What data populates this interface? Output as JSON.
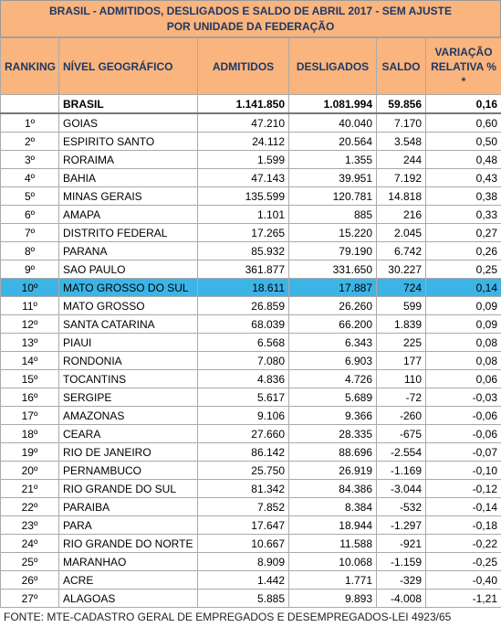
{
  "title": "BRASIL - ADMITIDOS, DESLIGADOS E SALDO DE ABRIL 2017 - SEM AJUSTE        POR UNIDADE DA FEDERAÇÃO",
  "table": {
    "header": [
      "RANKING",
      "NÍVEL GEOGRÁFICO",
      "ADMITIDOS",
      "DESLIGADOS",
      "SALDO",
      "VARIAÇÃO RELATIVA % *"
    ],
    "total": [
      "",
      "BRASIL",
      "1.141.850",
      "1.081.994",
      "59.856",
      "0,16"
    ],
    "rows": [
      [
        "1º",
        "GOIAS",
        "47.210",
        "40.040",
        "7.170",
        "0,60"
      ],
      [
        "2º",
        "ESPIRITO SANTO",
        "24.112",
        "20.564",
        "3.548",
        "0,50"
      ],
      [
        "3º",
        "RORAIMA",
        "1.599",
        "1.355",
        "244",
        "0,48"
      ],
      [
        "4º",
        "BAHIA",
        "47.143",
        "39.951",
        "7.192",
        "0,43"
      ],
      [
        "5º",
        "MINAS GERAIS",
        "135.599",
        "120.781",
        "14.818",
        "0,38"
      ],
      [
        "6º",
        "AMAPA",
        "1.101",
        "885",
        "216",
        "0,33"
      ],
      [
        "7º",
        "DISTRITO FEDERAL",
        "17.265",
        "15.220",
        "2.045",
        "0,27"
      ],
      [
        "8º",
        "PARANA",
        "85.932",
        "79.190",
        "6.742",
        "0,26"
      ],
      [
        "9º",
        "SAO PAULO",
        "361.877",
        "331.650",
        "30.227",
        "0,25"
      ],
      [
        "10º",
        "MATO GROSSO DO SUL",
        "18.611",
        "17.887",
        "724",
        "0,14"
      ],
      [
        "11º",
        "MATO GROSSO",
        "26.859",
        "26.260",
        "599",
        "0,09"
      ],
      [
        "12º",
        "SANTA CATARINA",
        "68.039",
        "66.200",
        "1.839",
        "0,09"
      ],
      [
        "13º",
        "PIAUI",
        "6.568",
        "6.343",
        "225",
        "0,08"
      ],
      [
        "14º",
        "RONDONIA",
        "7.080",
        "6.903",
        "177",
        "0,08"
      ],
      [
        "15º",
        "TOCANTINS",
        "4.836",
        "4.726",
        "110",
        "0,06"
      ],
      [
        "16º",
        "SERGIPE",
        "5.617",
        "5.689",
        "-72",
        "-0,03"
      ],
      [
        "17º",
        "AMAZONAS",
        "9.106",
        "9.366",
        "-260",
        "-0,06"
      ],
      [
        "18º",
        "CEARA",
        "27.660",
        "28.335",
        "-675",
        "-0,06"
      ],
      [
        "19º",
        "RIO DE JANEIRO",
        "86.142",
        "88.696",
        "-2.554",
        "-0,07"
      ],
      [
        "20º",
        "PERNAMBUCO",
        "25.750",
        "26.919",
        "-1.169",
        "-0,10"
      ],
      [
        "21º",
        "RIO GRANDE DO SUL",
        "81.342",
        "84.386",
        "-3.044",
        "-0,12"
      ],
      [
        "22º",
        "PARAIBA",
        "7.852",
        "8.384",
        "-532",
        "-0,14"
      ],
      [
        "23º",
        "PARA",
        "17.647",
        "18.944",
        "-1.297",
        "-0,18"
      ],
      [
        "24º",
        "RIO GRANDE DO NORTE",
        "10.667",
        "11.588",
        "-921",
        "-0,22"
      ],
      [
        "25º",
        "MARANHAO",
        "8.909",
        "10.068",
        "-1.159",
        "-0,25"
      ],
      [
        "26º",
        "ACRE",
        "1.442",
        "1.771",
        "-329",
        "-0,40"
      ],
      [
        "27º",
        "ALAGOAS",
        "5.885",
        "9.893",
        "-4.008",
        "-1,21"
      ]
    ],
    "highlight_row": 9,
    "highlight_color": "#3db4e6"
  },
  "footer": "FONTE: MTE-CADASTRO GERAL DE EMPREGADOS E DESEMPREGADOS-LEI 4923/65"
}
